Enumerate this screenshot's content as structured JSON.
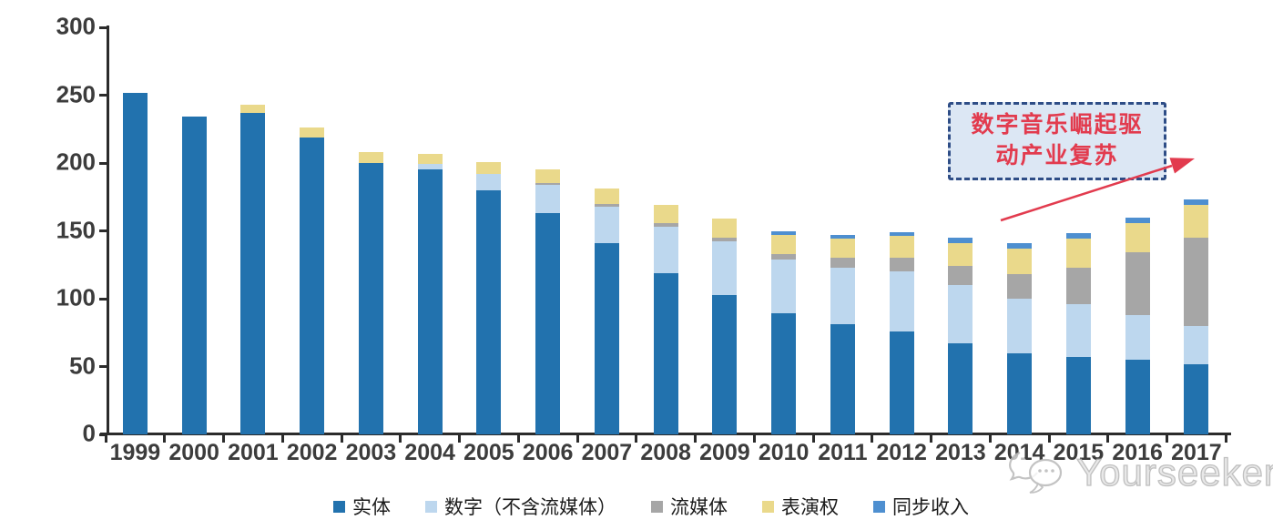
{
  "chart_data": {
    "type": "bar",
    "stacked": true,
    "categories": [
      "1999",
      "2000",
      "2001",
      "2002",
      "2003",
      "2004",
      "2005",
      "2006",
      "2007",
      "2008",
      "2009",
      "2010",
      "2011",
      "2012",
      "2013",
      "2014",
      "2015",
      "2016",
      "2017"
    ],
    "series": [
      {
        "name": "实体",
        "color": "#2272AE",
        "values": [
          252,
          234,
          237,
          219,
          200,
          195,
          180,
          163,
          141,
          119,
          103,
          89,
          81,
          76,
          67,
          60,
          57,
          55,
          52
        ]
      },
      {
        "name": "数字（不含流媒体）",
        "color": "#BDD7EE",
        "values": [
          0,
          0,
          0,
          0,
          0,
          4,
          12,
          21,
          27,
          34,
          39,
          40,
          42,
          44,
          43,
          40,
          39,
          33,
          28
        ]
      },
      {
        "name": "流媒体",
        "color": "#A6A6A6",
        "values": [
          0,
          0,
          0,
          0,
          0,
          0,
          0,
          1,
          2,
          3,
          3,
          4,
          7,
          10,
          14,
          18,
          27,
          46,
          65
        ]
      },
      {
        "name": "表演权",
        "color": "#EAD98B",
        "values": [
          0,
          0,
          6,
          7,
          8,
          8,
          9,
          10,
          11,
          13,
          14,
          14,
          14,
          16,
          17,
          19,
          21,
          22,
          24
        ]
      },
      {
        "name": "同步收入",
        "color": "#4E8FD0",
        "values": [
          0,
          0,
          0,
          0,
          0,
          0,
          0,
          0,
          0,
          0,
          0,
          3,
          3,
          3,
          4,
          4,
          4,
          4,
          4
        ]
      }
    ],
    "ylim": [
      0,
      300
    ],
    "yticks": [
      0,
      50,
      100,
      150,
      200,
      250,
      300
    ],
    "grid": false,
    "legend_position": "bottom",
    "title": "",
    "xlabel": "",
    "ylabel": ""
  },
  "annotation": {
    "line1": "数字音乐崛起驱",
    "line2": "动产业复苏",
    "border_color": "#2e4d86",
    "fill_color": "#dce7f4",
    "text_color": "#e23b4e",
    "arrow_color": "#e23b4e"
  },
  "watermark": {
    "text": "Yourseeker"
  }
}
